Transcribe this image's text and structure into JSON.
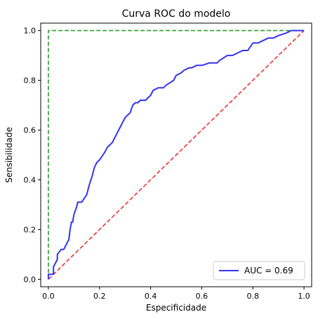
{
  "chart_data": {
    "type": "line",
    "title": "Curva ROC do modelo",
    "xlabel": "Especificidade",
    "ylabel": "Sensibilidade",
    "xlim": [
      -0.03,
      1.03
    ],
    "ylim": [
      -0.03,
      1.03
    ],
    "x_ticks": [
      "0.0",
      "0.2",
      "0.4",
      "0.6",
      "0.8",
      "1.0"
    ],
    "y_ticks": [
      "0.0",
      "0.2",
      "0.4",
      "0.6",
      "0.8",
      "1.0"
    ],
    "grid": false,
    "legend_position": "lower-right",
    "series": [
      {
        "name": "AUC = 0.69",
        "color": "#3333ee",
        "style": "solid",
        "x": [
          0.0,
          0.0,
          0.02,
          0.02,
          0.035,
          0.035,
          0.05,
          0.06,
          0.08,
          0.085,
          0.09,
          0.095,
          0.1,
          0.11,
          0.115,
          0.12,
          0.13,
          0.15,
          0.16,
          0.17,
          0.18,
          0.19,
          0.2,
          0.22,
          0.23,
          0.25,
          0.26,
          0.28,
          0.29,
          0.3,
          0.31,
          0.32,
          0.33,
          0.34,
          0.35,
          0.36,
          0.38,
          0.4,
          0.41,
          0.43,
          0.45,
          0.46,
          0.49,
          0.5,
          0.52,
          0.53,
          0.55,
          0.56,
          0.58,
          0.6,
          0.63,
          0.66,
          0.67,
          0.7,
          0.72,
          0.74,
          0.76,
          0.78,
          0.8,
          0.82,
          0.84,
          0.86,
          0.88,
          0.9,
          0.93,
          0.95,
          0.98,
          1.0
        ],
        "y": [
          0.0,
          0.02,
          0.02,
          0.05,
          0.08,
          0.1,
          0.12,
          0.12,
          0.16,
          0.2,
          0.23,
          0.23,
          0.26,
          0.29,
          0.31,
          0.31,
          0.31,
          0.34,
          0.38,
          0.41,
          0.45,
          0.47,
          0.48,
          0.51,
          0.53,
          0.55,
          0.57,
          0.61,
          0.63,
          0.65,
          0.66,
          0.67,
          0.7,
          0.71,
          0.71,
          0.72,
          0.72,
          0.74,
          0.76,
          0.77,
          0.77,
          0.78,
          0.8,
          0.82,
          0.83,
          0.84,
          0.85,
          0.85,
          0.86,
          0.86,
          0.87,
          0.87,
          0.88,
          0.9,
          0.9,
          0.91,
          0.92,
          0.92,
          0.95,
          0.95,
          0.96,
          0.97,
          0.97,
          0.98,
          0.99,
          1.0,
          1.0,
          1.0
        ]
      },
      {
        "name": "",
        "color": "#ee3333",
        "style": "dashed",
        "x": [
          0.0,
          1.0
        ],
        "y": [
          0.0,
          1.0
        ]
      },
      {
        "name": "",
        "color": "#2ca02c",
        "style": "dashed",
        "x": [
          0.0,
          0.0,
          1.0
        ],
        "y": [
          0.0,
          1.0,
          1.0
        ]
      }
    ]
  }
}
